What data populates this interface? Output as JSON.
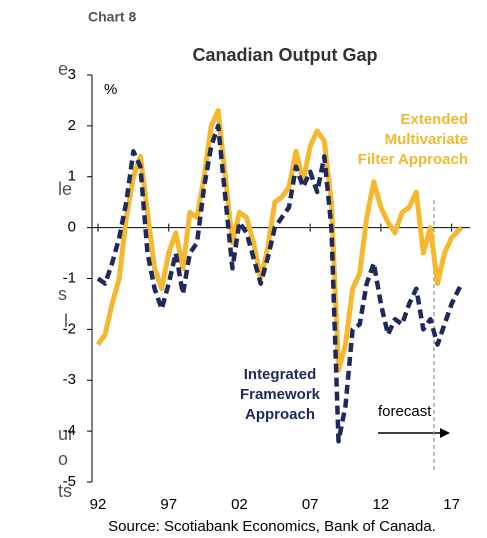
{
  "clipped_text": [
    "e",
    "le",
    "s",
    "l",
    "ur",
    "o",
    "ts"
  ],
  "chart_data": {
    "type": "line",
    "label": "Chart 8",
    "title": "Canadian Output Gap",
    "y_unit": "%",
    "source": "Source: Scotiabank Economics, Bank of Canada.",
    "x": [
      1992,
      1992.5,
      1993,
      1993.5,
      1994,
      1994.5,
      1995,
      1995.5,
      1996,
      1996.5,
      1997,
      1997.5,
      1998,
      1998.5,
      1999,
      1999.5,
      2000,
      2000.5,
      2001,
      2001.5,
      2002,
      2002.5,
      2003,
      2003.5,
      2004,
      2004.5,
      2005,
      2005.5,
      2006,
      2006.5,
      2007,
      2007.5,
      2008,
      2008.5,
      2009,
      2009.5,
      2010,
      2010.5,
      2011,
      2011.5,
      2012,
      2012.5,
      2013,
      2013.5,
      2014,
      2014.5,
      2015,
      2015.5,
      2016,
      2016.5,
      2017,
      2017.7
    ],
    "series": [
      {
        "name": "Extended Multivariate Filter Approach",
        "color": "#f5b82e",
        "dashed": false,
        "values": [
          -2.3,
          -2.1,
          -1.5,
          -1.0,
          0.2,
          1.0,
          1.4,
          0.3,
          -0.8,
          -1.2,
          -0.5,
          -0.1,
          -0.8,
          0.3,
          0.2,
          1.0,
          2.0,
          2.3,
          1.0,
          -0.3,
          0.3,
          0.2,
          -0.3,
          -1.0,
          -0.4,
          0.5,
          0.6,
          0.8,
          1.5,
          0.9,
          1.6,
          1.9,
          1.7,
          0.5,
          -2.8,
          -2.3,
          -1.2,
          -0.9,
          0.2,
          0.9,
          0.4,
          0.1,
          -0.1,
          0.3,
          0.4,
          0.7,
          -0.5,
          0.0,
          -1.1,
          -0.5,
          -0.2,
          0.0
        ]
      },
      {
        "name": "Integrated Framework Approach",
        "color": "#1f2a5c",
        "dashed": true,
        "values": [
          -1.0,
          -1.1,
          -0.7,
          -0.2,
          0.5,
          1.5,
          1.2,
          -0.5,
          -1.2,
          -1.6,
          -1.1,
          -0.5,
          -1.3,
          -0.5,
          -0.3,
          0.8,
          1.6,
          2.0,
          0.6,
          -0.8,
          0.1,
          -0.1,
          -0.6,
          -1.1,
          -0.6,
          0.0,
          0.2,
          0.4,
          1.2,
          0.8,
          1.1,
          0.7,
          1.4,
          0.0,
          -4.2,
          -3.5,
          -2.0,
          -1.9,
          -1.1,
          -0.7,
          -1.5,
          -2.1,
          -1.8,
          -1.9,
          -1.5,
          -1.2,
          -2.0,
          -1.8,
          -2.3,
          -1.9,
          -1.5,
          -1.1
        ]
      }
    ],
    "forecast": {
      "label": "forecast",
      "x": 2015.75
    },
    "xlim": [
      1992,
      2018.3
    ],
    "xticks": [
      {
        "value": 1992,
        "label": "92"
      },
      {
        "value": 1997,
        "label": "97"
      },
      {
        "value": 2002,
        "label": "02"
      },
      {
        "value": 2007,
        "label": "07"
      },
      {
        "value": 2012,
        "label": "12"
      },
      {
        "value": 2017,
        "label": "17"
      }
    ],
    "ylim": [
      -5,
      3
    ],
    "yticks": [
      -5,
      -4,
      -3,
      -2,
      -1,
      0,
      1,
      2,
      3
    ]
  }
}
